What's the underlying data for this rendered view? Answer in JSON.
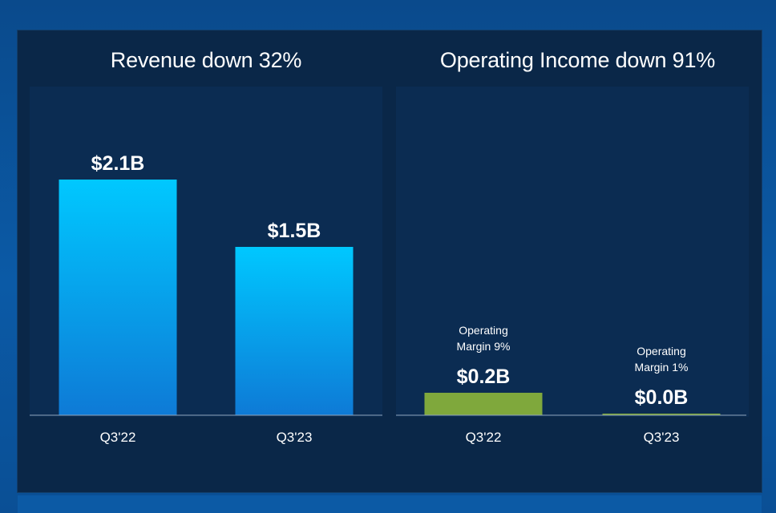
{
  "colors": {
    "revenue_bar_top": "#00c8ff",
    "revenue_bar_bottom": "#0e7ad6",
    "income_bar": "#7fa83c",
    "text": "#ffffff"
  },
  "chart_data": [
    {
      "type": "bar",
      "title": "Revenue down 32%",
      "categories": [
        "Q3'22",
        "Q3'23"
      ],
      "values": [
        2.1,
        1.5
      ],
      "value_labels": [
        "$2.1B",
        "$1.5B"
      ],
      "ylim": [
        0,
        2.5
      ],
      "grid": false
    },
    {
      "type": "bar",
      "title": "Operating Income down 91%",
      "categories": [
        "Q3'22",
        "Q3'23"
      ],
      "values": [
        0.2,
        0.01
      ],
      "value_labels": [
        "$0.2B",
        "$0.0B"
      ],
      "annotations": [
        [
          "Operating",
          "Margin 9%"
        ],
        [
          "Operating",
          "Margin 1%"
        ]
      ],
      "ylim": [
        0,
        2.5
      ],
      "grid": false
    }
  ]
}
